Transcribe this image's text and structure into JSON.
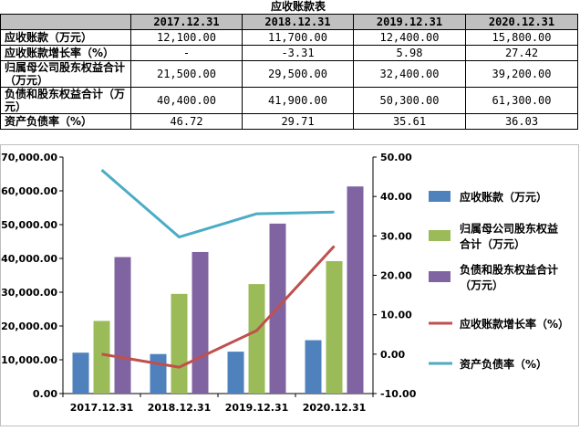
{
  "table": {
    "title": "应收账款表",
    "columns": [
      "2017.12.31",
      "2018.12.31",
      "2019.12.31",
      "2020.12.31"
    ],
    "rows": [
      {
        "label": "应收账款（万元）",
        "values": [
          "12,100.00",
          "11,700.00",
          "12,400.00",
          "15,800.00"
        ]
      },
      {
        "label": "应收账款增长率（%）",
        "values": [
          "-",
          "-3.31",
          "5.98",
          "27.42"
        ]
      },
      {
        "label": "归属母公司股东权益合计（万元）",
        "values": [
          "21,500.00",
          "29,500.00",
          "32,400.00",
          "39,200.00"
        ]
      },
      {
        "label": "负债和股东权益合计（万元）",
        "values": [
          "40,400.00",
          "41,900.00",
          "50,300.00",
          "61,300.00"
        ]
      },
      {
        "label": "资产负债率（%）",
        "values": [
          "46.72",
          "29.71",
          "35.61",
          "36.03"
        ]
      }
    ]
  },
  "chart_data": {
    "type": "bar",
    "categories": [
      "2017.12.31",
      "2018.12.31",
      "2019.12.31",
      "2020.12.31"
    ],
    "series": [
      {
        "name": "应收账款（万元）",
        "kind": "bar",
        "axis": "left",
        "color": "#4f81bd",
        "values": [
          12100,
          11700,
          12400,
          15800
        ]
      },
      {
        "name": "归属母公司股东权益合计（万元）",
        "kind": "bar",
        "axis": "left",
        "color": "#9bbb59",
        "values": [
          21500,
          29500,
          32400,
          39200
        ]
      },
      {
        "name": "负债和股东权益合计（万元）",
        "kind": "bar",
        "axis": "left",
        "color": "#8064a2",
        "values": [
          40400,
          41900,
          50300,
          61300
        ]
      },
      {
        "name": "应收账款增长率（%）",
        "kind": "line",
        "axis": "right",
        "color": "#c0504d",
        "values": [
          0,
          -3.31,
          5.98,
          27.42
        ]
      },
      {
        "name": "资产负债率（%）",
        "kind": "line",
        "axis": "right",
        "color": "#4bacc6",
        "values": [
          46.72,
          29.71,
          35.61,
          36.03
        ]
      }
    ],
    "y_left": {
      "min": 0,
      "max": 70000,
      "step": 10000,
      "tick_labels": [
        "0.00",
        "10,000.00",
        "20,000.00",
        "30,000.00",
        "40,000.00",
        "50,000.00",
        "60,000.00",
        "70,000.00"
      ]
    },
    "y_right": {
      "min": -10,
      "max": 50,
      "step": 10,
      "tick_labels": [
        "-10.00",
        "0.00",
        "10.00",
        "20.00",
        "30.00",
        "40.00",
        "50.00"
      ]
    },
    "legend_labels": [
      [
        "应收账款（万元）"
      ],
      [
        "归属母公司股东权益",
        "合计（万元）"
      ],
      [
        "负债和股东权益合计",
        "（万元）"
      ],
      [
        "应收账款增长率（%）"
      ],
      [
        "资产负债率（%）"
      ]
    ],
    "legend_position": "right",
    "grid": false
  }
}
